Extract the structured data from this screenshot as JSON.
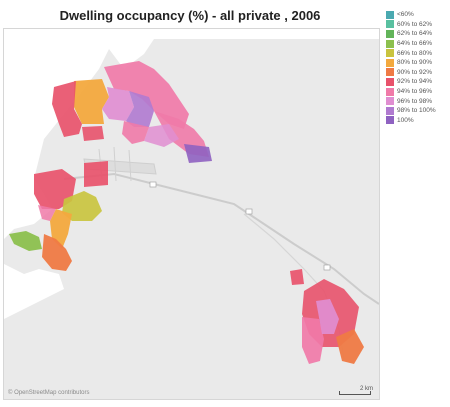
{
  "title": "Dwelling occupancy (%) - all private , 2006",
  "attribution": "© OpenStreetMap contributors",
  "scale_label": "2 km",
  "legend": [
    {
      "label": "<60%",
      "color": "#4aa9b0"
    },
    {
      "label": "60% to 62%",
      "color": "#59c0a0"
    },
    {
      "label": "62% to 64%",
      "color": "#62b45a"
    },
    {
      "label": "64% to 66%",
      "color": "#8cc04e"
    },
    {
      "label": "66% to 80%",
      "color": "#c9c43f"
    },
    {
      "label": "80% to 90%",
      "color": "#f3a93e"
    },
    {
      "label": "90% to 92%",
      "color": "#ef7a45"
    },
    {
      "label": "92% to 94%",
      "color": "#e8526b"
    },
    {
      "label": "94% to 96%",
      "color": "#f07aa8"
    },
    {
      "label": "96% to 98%",
      "color": "#e08ed1"
    },
    {
      "label": "98% to 100%",
      "color": "#b07ad0"
    },
    {
      "label": "100%",
      "color": "#8f62c1"
    }
  ]
}
